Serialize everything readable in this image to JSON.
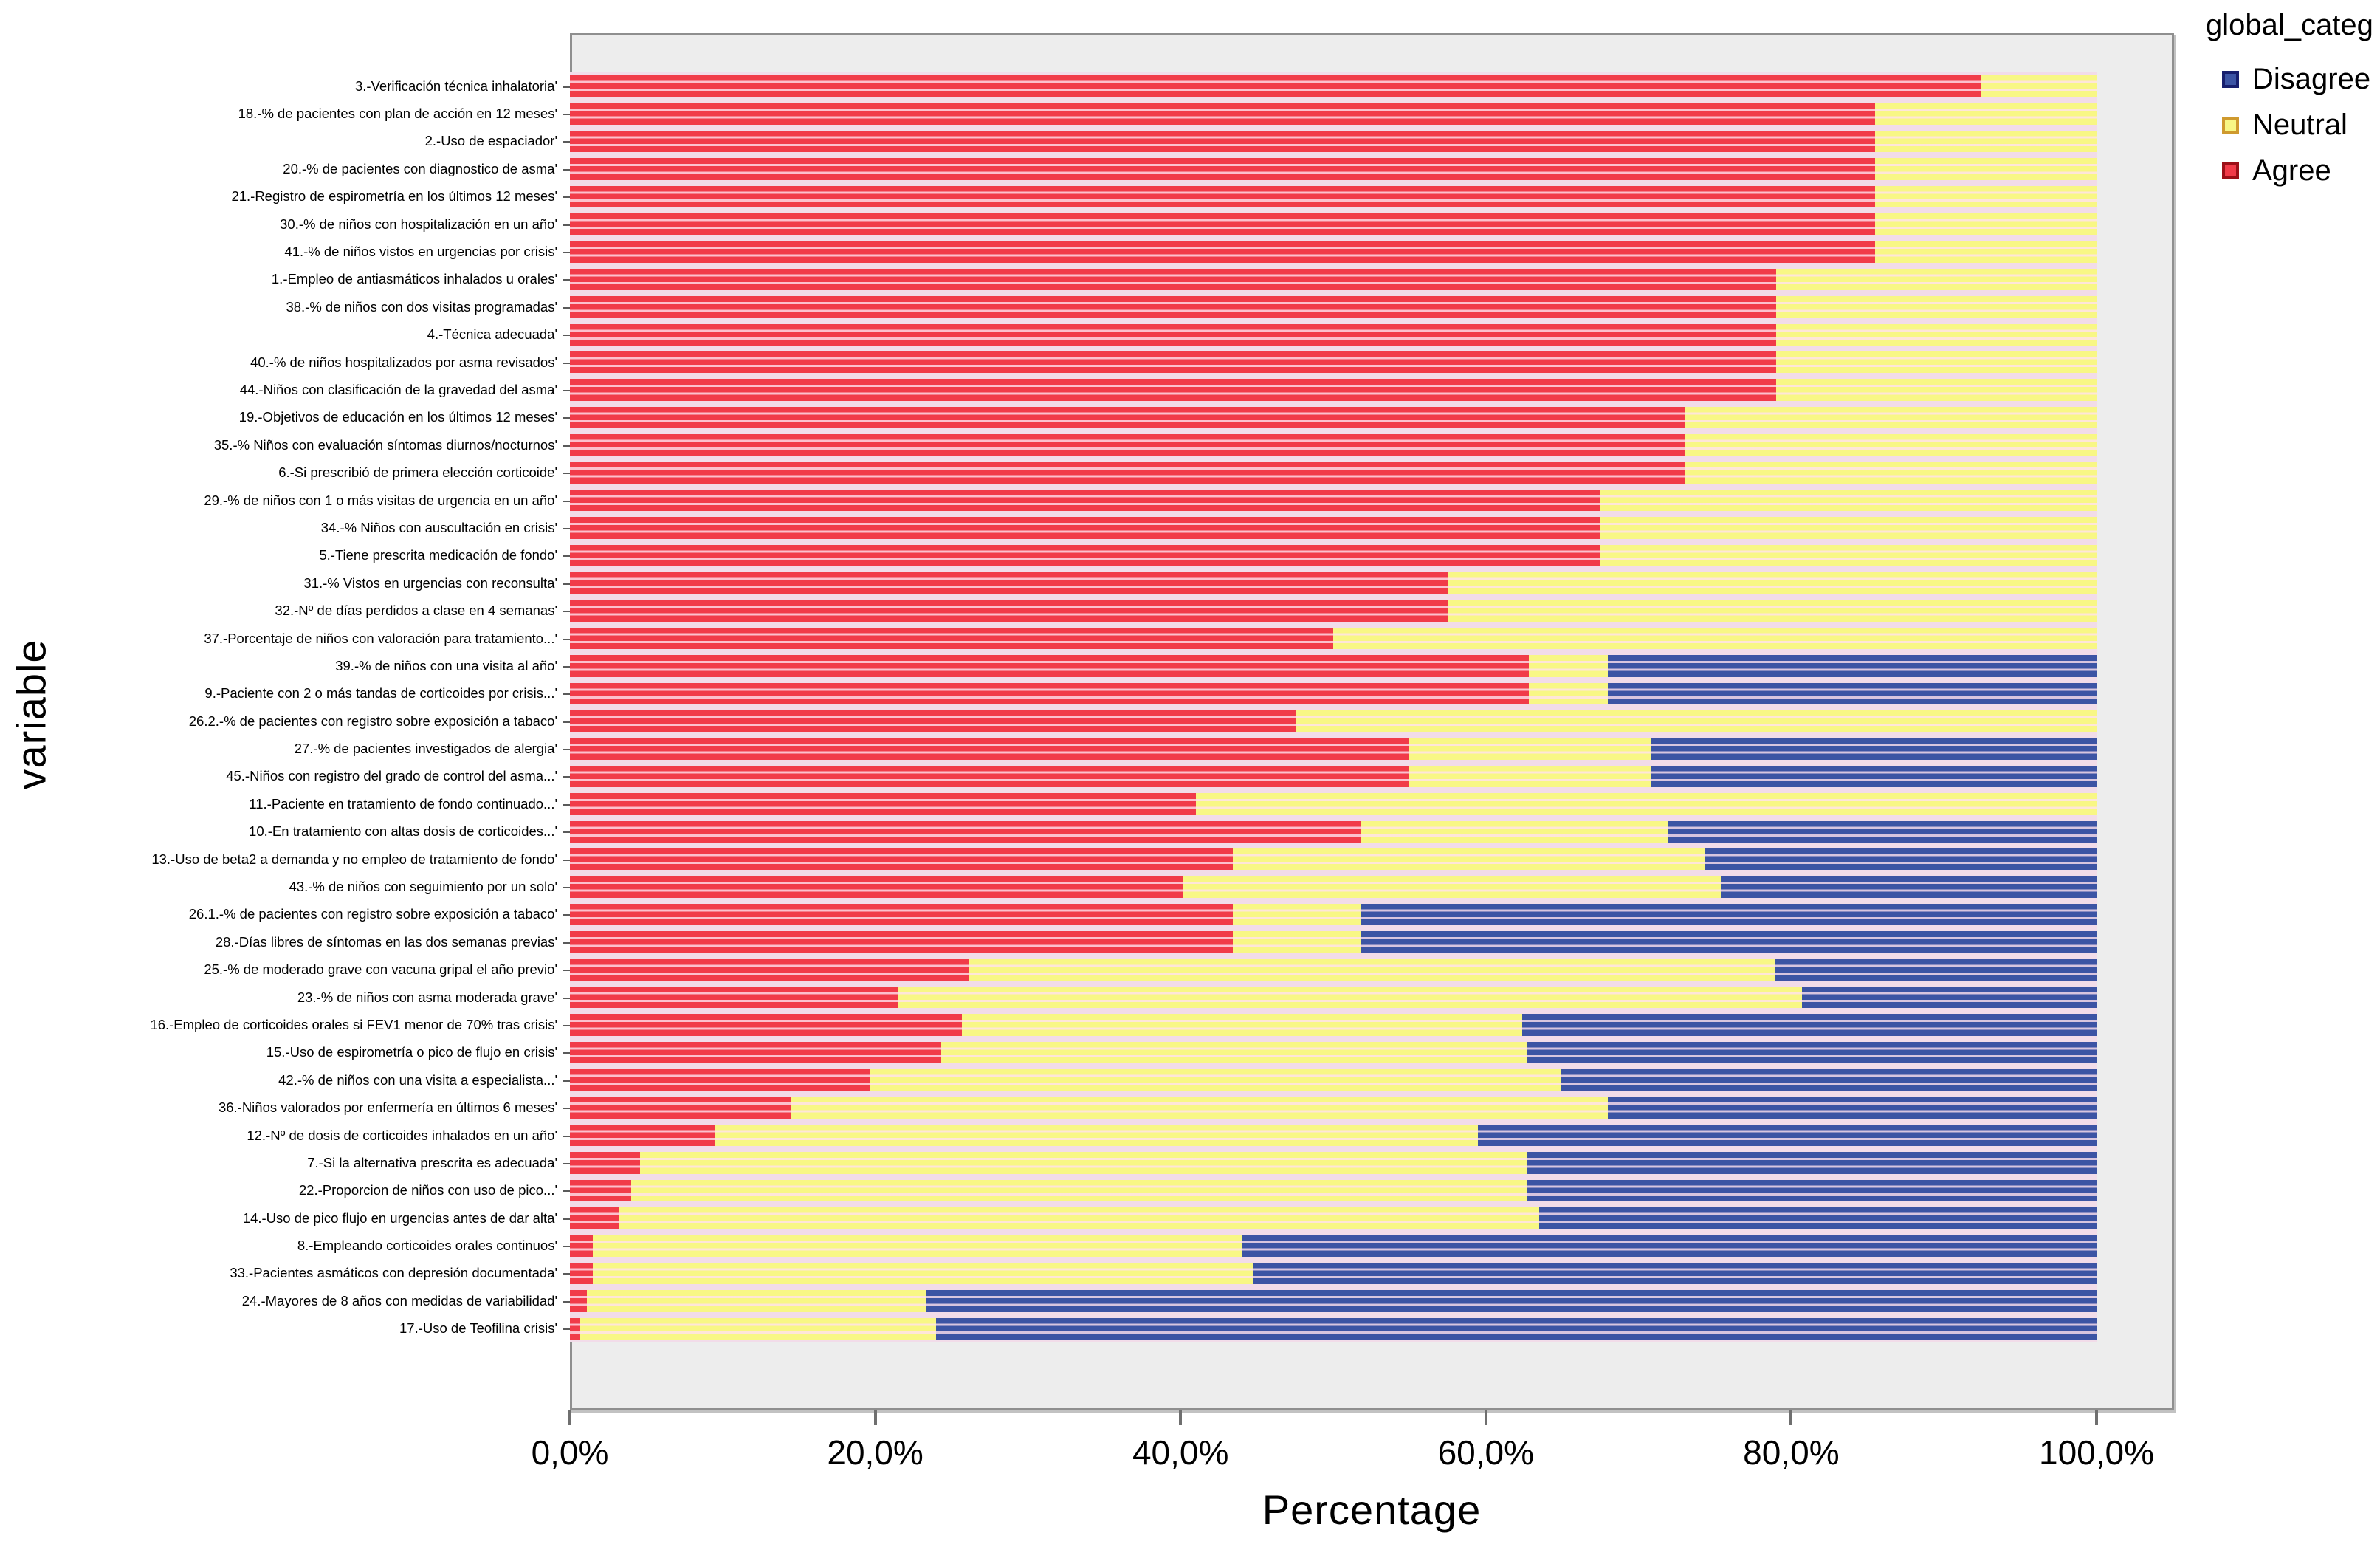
{
  "y_axis": {
    "title": "variable"
  },
  "x_axis": {
    "title": "Percentage",
    "ticks": [
      {
        "value": 0,
        "label": "0,0%"
      },
      {
        "value": 20,
        "label": "20,0%"
      },
      {
        "value": 40,
        "label": "40,0%"
      },
      {
        "value": 60,
        "label": "60,0%"
      },
      {
        "value": 80,
        "label": "80,0%"
      },
      {
        "value": 100,
        "label": "100,0%"
      }
    ]
  },
  "legend": {
    "title": "global_categ",
    "items": [
      {
        "label": "Disagree",
        "color": "#3c54a4",
        "border": "#181f6e"
      },
      {
        "label": "Neutral",
        "color": "#f8f785",
        "border": "#cf9a2e"
      },
      {
        "label": "Agree",
        "color": "#f13b49",
        "border": "#9c1018"
      }
    ]
  },
  "colors": {
    "agree": "#f13b49",
    "neutral": "#f8f785",
    "disagree": "#3c54a4",
    "plot_background": "#ededed",
    "bar_gap": "#f2dce9"
  },
  "chart_data": {
    "type": "bar",
    "orientation": "horizontal",
    "stacked": true,
    "x_range": [
      0,
      100
    ],
    "grid": false,
    "legend_position": "top-right",
    "series_order": [
      "agree",
      "neutral",
      "disagree"
    ],
    "rows": [
      {
        "label": "3.-Verificación técnica inhalatoria'",
        "agree": 92.4,
        "neutral": 7.6,
        "disagree": 0
      },
      {
        "label": "18.-% de pacientes con plan de acción en 12 meses'",
        "agree": 85.5,
        "neutral": 14.5,
        "disagree": 0
      },
      {
        "label": "2.-Uso de espaciador'",
        "agree": 85.5,
        "neutral": 14.5,
        "disagree": 0
      },
      {
        "label": "20.-% de pacientes con diagnostico de asma'",
        "agree": 85.5,
        "neutral": 14.5,
        "disagree": 0
      },
      {
        "label": "21.-Registro de espirometría en los últimos 12 meses'",
        "agree": 85.5,
        "neutral": 14.5,
        "disagree": 0
      },
      {
        "label": "30.-% de niños con hospitalización en un año'",
        "agree": 85.5,
        "neutral": 14.5,
        "disagree": 0
      },
      {
        "label": "41.-% de niños vistos en urgencias por crisis'",
        "agree": 85.5,
        "neutral": 14.5,
        "disagree": 0
      },
      {
        "label": "1.-Empleo de antiasmáticos inhalados u orales'",
        "agree": 79.0,
        "neutral": 21.0,
        "disagree": 0
      },
      {
        "label": "38.-% de niños con dos visitas programadas'",
        "agree": 79.0,
        "neutral": 21.0,
        "disagree": 0
      },
      {
        "label": "4.-Técnica adecuada'",
        "agree": 79.0,
        "neutral": 21.0,
        "disagree": 0
      },
      {
        "label": "40.-% de niños hospitalizados por asma revisados'",
        "agree": 79.0,
        "neutral": 21.0,
        "disagree": 0
      },
      {
        "label": "44.-Niños con clasificación de la gravedad  del asma'",
        "agree": 79.0,
        "neutral": 21.0,
        "disagree": 0
      },
      {
        "label": "19.-Objetivos de educación en los últimos 12 meses'",
        "agree": 73.0,
        "neutral": 27.0,
        "disagree": 0
      },
      {
        "label": "35.-% Niños con evaluación síntomas diurnos/nocturnos'",
        "agree": 73.0,
        "neutral": 27.0,
        "disagree": 0
      },
      {
        "label": "6.-Si  prescribió de primera elección  corticoide'",
        "agree": 73.0,
        "neutral": 27.0,
        "disagree": 0
      },
      {
        "label": "29.-% de niños con 1 o más visitas de urgencia en un año'",
        "agree": 67.5,
        "neutral": 32.5,
        "disagree": 0
      },
      {
        "label": "34.-% Niños con auscultación en crisis'",
        "agree": 67.5,
        "neutral": 32.5,
        "disagree": 0
      },
      {
        "label": "5.-Tiene prescrita medicación de fondo'",
        "agree": 67.5,
        "neutral": 32.5,
        "disagree": 0
      },
      {
        "label": "31.-% Vistos en urgencias con reconsulta'",
        "agree": 57.5,
        "neutral": 42.5,
        "disagree": 0
      },
      {
        "label": "32.-Nº de días perdidos a clase en 4 semanas'",
        "agree": 57.5,
        "neutral": 42.5,
        "disagree": 0
      },
      {
        "label": "37.-Porcentaje de niños con valoración para tratamiento...'",
        "agree": 50.0,
        "neutral": 50.0,
        "disagree": 0
      },
      {
        "label": "39.-% de niños con una visita al año'",
        "agree": 62.8,
        "neutral": 5.2,
        "disagree": 32.0
      },
      {
        "label": "9.-Paciente con 2 o más tandas de corticoides por crisis...'",
        "agree": 62.8,
        "neutral": 5.2,
        "disagree": 32.0
      },
      {
        "label": "26.2.-% de pacientes con registro sobre exposición a tabaco'",
        "agree": 47.6,
        "neutral": 52.4,
        "disagree": 0
      },
      {
        "label": "27.-% de pacientes investigados de alergia'",
        "agree": 55.0,
        "neutral": 15.8,
        "disagree": 29.2
      },
      {
        "label": "45.-Niños con registro del grado de control del asma...'",
        "agree": 55.0,
        "neutral": 15.8,
        "disagree": 29.2
      },
      {
        "label": "11.-Paciente en tratamiento de fondo  continuado...'",
        "agree": 41.0,
        "neutral": 59.0,
        "disagree": 0
      },
      {
        "label": "10.-En tratamiento con altas dosis  de corticoides...'",
        "agree": 51.8,
        "neutral": 20.1,
        "disagree": 28.1
      },
      {
        "label": "13.-Uso  de beta2 a demanda y no empleo de tratamiento de fondo'",
        "agree": 43.4,
        "neutral": 30.9,
        "disagree": 25.7
      },
      {
        "label": "43.-% de niños con seguimiento por un solo'",
        "agree": 40.2,
        "neutral": 35.2,
        "disagree": 24.6
      },
      {
        "label": "26.1.-% de pacientes con registro sobre exposición a tabaco'",
        "agree": 43.4,
        "neutral": 8.4,
        "disagree": 48.2
      },
      {
        "label": "28.-Días libres de síntomas en las dos semanas previas'",
        "agree": 43.4,
        "neutral": 8.4,
        "disagree": 48.2
      },
      {
        "label": "25.-% de moderado grave con vacuna gripal el año previo'",
        "agree": 26.1,
        "neutral": 52.8,
        "disagree": 21.1
      },
      {
        "label": "23.-% de niños con  asma moderada grave'",
        "agree": 21.5,
        "neutral": 59.2,
        "disagree": 19.3
      },
      {
        "label": "16.-Empleo de corticoides orales si FEV1 menor de 70% tras crisis'",
        "agree": 25.7,
        "neutral": 36.7,
        "disagree": 37.6
      },
      {
        "label": "15.-Uso de espirometría o pico de flujo en crisis'",
        "agree": 24.3,
        "neutral": 38.4,
        "disagree": 37.3
      },
      {
        "label": "42.-% de  niños con una visita a especialista...'",
        "agree": 19.7,
        "neutral": 45.2,
        "disagree": 35.1
      },
      {
        "label": "36.-Niños valorados por enfermería en últimos  6 meses'",
        "agree": 14.5,
        "neutral": 53.5,
        "disagree": 32.0
      },
      {
        "label": "12.-Nº de dosis de corticoides inhalados en un año'",
        "agree": 9.5,
        "neutral": 50.0,
        "disagree": 40.5
      },
      {
        "label": "7.-Si la alternativa prescrita es adecuada'",
        "agree": 4.6,
        "neutral": 58.1,
        "disagree": 37.3
      },
      {
        "label": "22.-Proporcion de niños con uso de pico...'",
        "agree": 4.0,
        "neutral": 58.7,
        "disagree": 37.3
      },
      {
        "label": "14.-Uso de pico flujo en urgencias antes de dar alta'",
        "agree": 3.2,
        "neutral": 60.3,
        "disagree": 36.5
      },
      {
        "label": "8.-Empleando corticoides orales continuos'",
        "agree": 1.5,
        "neutral": 42.5,
        "disagree": 56.0
      },
      {
        "label": "33.-Pacientes asmáticos con depresión documentada'",
        "agree": 1.5,
        "neutral": 43.3,
        "disagree": 55.2
      },
      {
        "label": "24.-Mayores de 8 años con medidas de variabilidad'",
        "agree": 1.1,
        "neutral": 22.2,
        "disagree": 76.7
      },
      {
        "label": "17.-Uso de Teofilina crisis'",
        "agree": 0.7,
        "neutral": 23.3,
        "disagree": 76.0
      }
    ]
  }
}
